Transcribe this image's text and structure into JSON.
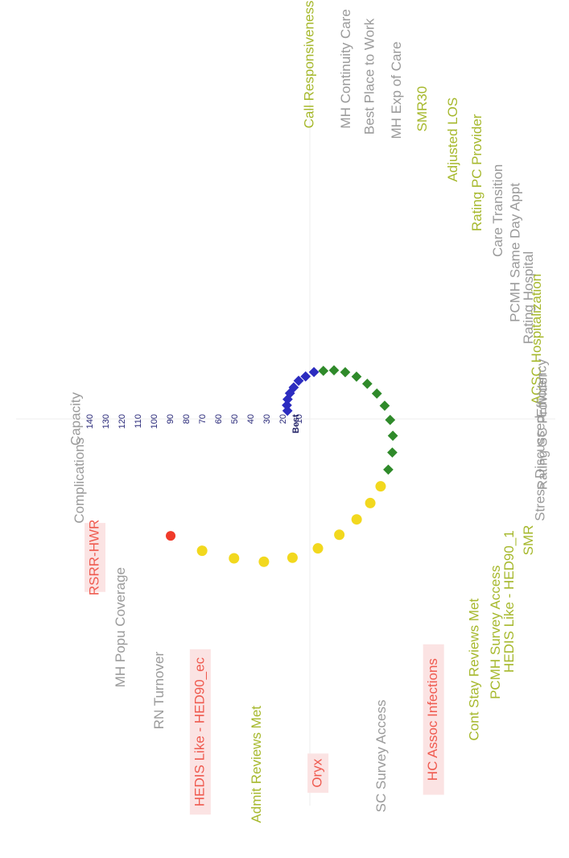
{
  "chart_data": {
    "type": "scatter",
    "subtype": "radial spiral rank chart",
    "title": "",
    "center_label": "Best",
    "radial_ticks": [
      "140",
      "130",
      "120",
      "110",
      "100",
      "90",
      "80",
      "70",
      "60",
      "50",
      "40",
      "30",
      "20",
      "10"
    ],
    "colors": {
      "red": "#f03a2a",
      "yellow": "#f2d81e",
      "green": "#2f8a2a",
      "blue": "#2c2cc0",
      "label_green": "#a6b82c",
      "label_red": "#ef5a4f",
      "label_gray": "#9a9a9a",
      "label_red_bg": "#fbe3e3"
    },
    "measures": [
      {
        "label": "Call Responsiveness",
        "style": "green",
        "angle": 90
      },
      {
        "label": "MH Continuity Care",
        "style": "gray",
        "angle": 81
      },
      {
        "label": "Best Place to Work",
        "style": "gray",
        "angle": 75
      },
      {
        "label": "MH Exp of Care",
        "style": "gray",
        "angle": 68
      },
      {
        "label": "SMR30",
        "style": "green",
        "angle": 61
      },
      {
        "label": "Adjusted LOS",
        "style": "green",
        "angle": 52
      },
      {
        "label": "Rating PC Provider",
        "style": "green",
        "angle": 44
      },
      {
        "label": "Care Transition",
        "style": "gray",
        "angle": 36
      },
      {
        "label": "PCMH Same Day Appt",
        "style": "gray",
        "angle": 28
      },
      {
        "label": "Rating Hospital",
        "style": "gray",
        "angle": 20
      },
      {
        "label": "ACSC Hospitalization",
        "style": "green",
        "angle": 13
      },
      {
        "label": "Efficiency",
        "style": "gray",
        "angle": 5
      },
      {
        "label": "Rating SC Provider",
        "style": "gray",
        "angle": -2
      },
      {
        "label": "Stress Discussed",
        "style": "gray",
        "angle": -8
      },
      {
        "label": "SMR",
        "style": "green",
        "angle": -20
      },
      {
        "label": "HEDIS Like - HED90_1",
        "style": "green",
        "angle": -31
      },
      {
        "label": "PCMH Survey Access",
        "style": "green",
        "angle": -37
      },
      {
        "label": "Cont Stay Reviews Met",
        "style": "green",
        "angle": -45
      },
      {
        "label": "HC Assoc Infections",
        "style": "red",
        "angle": -58
      },
      {
        "label": "SC Survey Access",
        "style": "gray",
        "angle": -72
      },
      {
        "label": "Oryx",
        "style": "red",
        "angle": -88
      },
      {
        "label": "Admit Reviews Met",
        "style": "green",
        "angle": -103
      },
      {
        "label": "HEDIS Like - HED90_ec",
        "style": "red",
        "angle": -118
      },
      {
        "label": "RN Turnover",
        "style": "gray",
        "angle": -130
      },
      {
        "label": "MH Popu Coverage",
        "style": "gray",
        "angle": -144
      },
      {
        "label": "RSRR-HWR",
        "style": "red",
        "angle": -157
      },
      {
        "label": "Complications",
        "style": "gray",
        "angle": -170
      },
      {
        "label": "Capacity",
        "style": "gray",
        "angle": -180
      }
    ],
    "points": [
      {
        "rank": 12,
        "color": "blue"
      },
      {
        "rank": 14,
        "color": "blue"
      },
      {
        "rank": 16,
        "color": "blue"
      },
      {
        "rank": 18,
        "color": "blue"
      },
      {
        "rank": 20,
        "color": "blue"
      },
      {
        "rank": 23,
        "color": "blue"
      },
      {
        "rank": 25,
        "color": "blue"
      },
      {
        "rank": 28,
        "color": "blue"
      },
      {
        "rank": 30,
        "color": "green"
      },
      {
        "rank": 33,
        "color": "green"
      },
      {
        "rank": 36,
        "color": "green"
      },
      {
        "rank": 39,
        "color": "green"
      },
      {
        "rank": 42,
        "color": "green"
      },
      {
        "rank": 45,
        "color": "green"
      },
      {
        "rank": 48,
        "color": "green"
      },
      {
        "rank": 51,
        "color": "green"
      },
      {
        "rank": 54,
        "color": "green"
      },
      {
        "rank": 57,
        "color": "green"
      },
      {
        "rank": 60,
        "color": "green"
      },
      {
        "rank": 63,
        "color": "yellow"
      },
      {
        "rank": 67,
        "color": "yellow"
      },
      {
        "rank": 72,
        "color": "yellow"
      },
      {
        "rank": 78,
        "color": "yellow"
      },
      {
        "rank": 85,
        "color": "yellow"
      },
      {
        "rank": 92,
        "color": "yellow"
      },
      {
        "rank": 99,
        "color": "yellow"
      },
      {
        "rank": 105,
        "color": "yellow"
      },
      {
        "rank": 113,
        "color": "yellow"
      },
      {
        "rank": 121,
        "color": "red"
      }
    ]
  }
}
